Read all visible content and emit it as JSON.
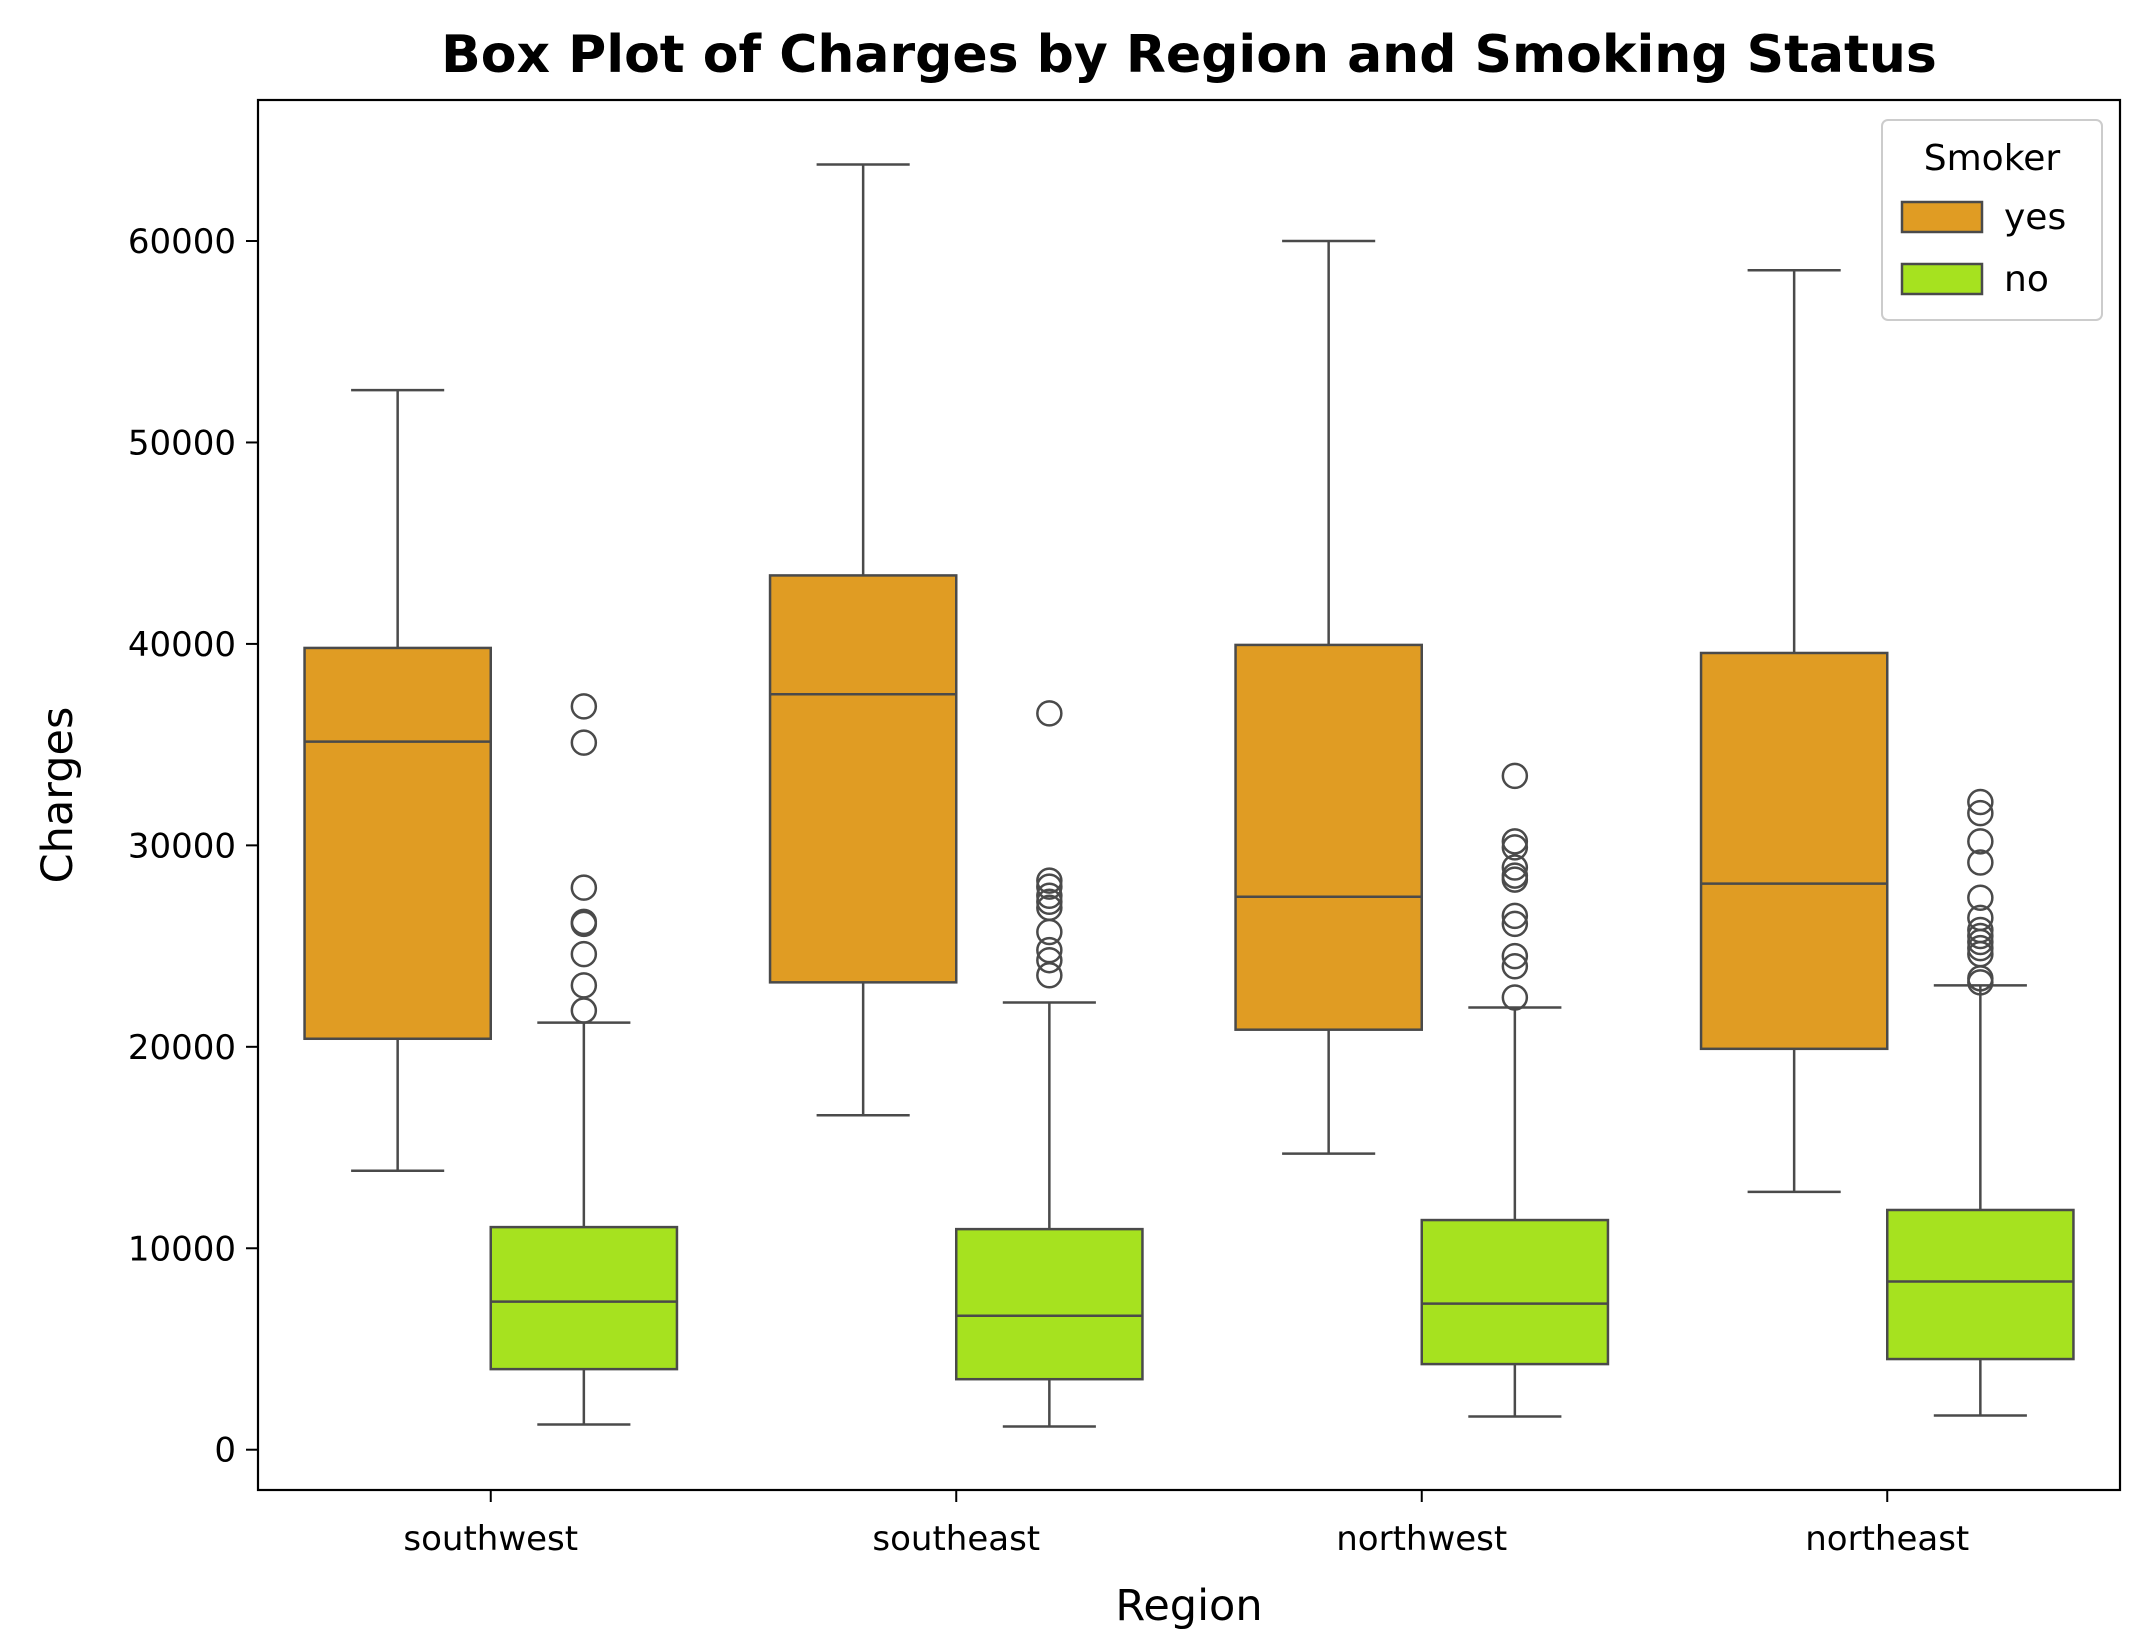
{
  "chart_data": {
    "type": "box",
    "title": "Box Plot of Charges by Region and Smoking Status",
    "xlabel": "Region",
    "ylabel": "Charges",
    "categories": [
      "southwest",
      "southeast",
      "northwest",
      "northeast"
    ],
    "ylim": [
      -2000,
      67000
    ],
    "yticks": [
      0,
      10000,
      20000,
      30000,
      40000,
      50000,
      60000
    ],
    "grid": false,
    "legend": {
      "title": "Smoker",
      "placement": "top-right"
    },
    "series": [
      {
        "name": "yes",
        "color": "#e09c23",
        "boxes": [
          {
            "category": "southwest",
            "whislo": 13850,
            "q1": 20400,
            "med": 35150,
            "q3": 39800,
            "whishi": 52600,
            "fliers": []
          },
          {
            "category": "southeast",
            "whislo": 16600,
            "q1": 23200,
            "med": 37500,
            "q3": 43400,
            "whishi": 63800,
            "fliers": []
          },
          {
            "category": "northwest",
            "whislo": 14700,
            "q1": 20850,
            "med": 27450,
            "q3": 39950,
            "whishi": 60000,
            "fliers": []
          },
          {
            "category": "northeast",
            "whislo": 12800,
            "q1": 19900,
            "med": 28100,
            "q3": 39550,
            "whishi": 58550,
            "fliers": []
          }
        ]
      },
      {
        "name": "no",
        "color": "#a6e21f",
        "boxes": [
          {
            "category": "southwest",
            "whislo": 1250,
            "q1": 4000,
            "med": 7350,
            "q3": 11050,
            "whishi": 21200,
            "fliers": [
              21800,
              23050,
              24600,
              26100,
              26200,
              27900,
              35100,
              36900
            ]
          },
          {
            "category": "southeast",
            "whislo": 1150,
            "q1": 3500,
            "med": 6650,
            "q3": 10950,
            "whishi": 22200,
            "fliers": [
              23550,
              24300,
              24800,
              25700,
              26900,
              27200,
              27500,
              27950,
              28250,
              36550
            ]
          },
          {
            "category": "northwest",
            "whislo": 1650,
            "q1": 4250,
            "med": 7250,
            "q3": 11400,
            "whishi": 21950,
            "fliers": [
              22450,
              24000,
              24500,
              26100,
              26500,
              28300,
              28500,
              28900,
              29900,
              30200,
              33450
            ]
          },
          {
            "category": "northeast",
            "whislo": 1700,
            "q1": 4500,
            "med": 8350,
            "q3": 11900,
            "whishi": 23050,
            "fliers": [
              23200,
              23400,
              24600,
              24900,
              25200,
              25500,
              25800,
              26400,
              27400,
              29150,
              30200,
              31600,
              32150
            ]
          }
        ]
      }
    ]
  }
}
